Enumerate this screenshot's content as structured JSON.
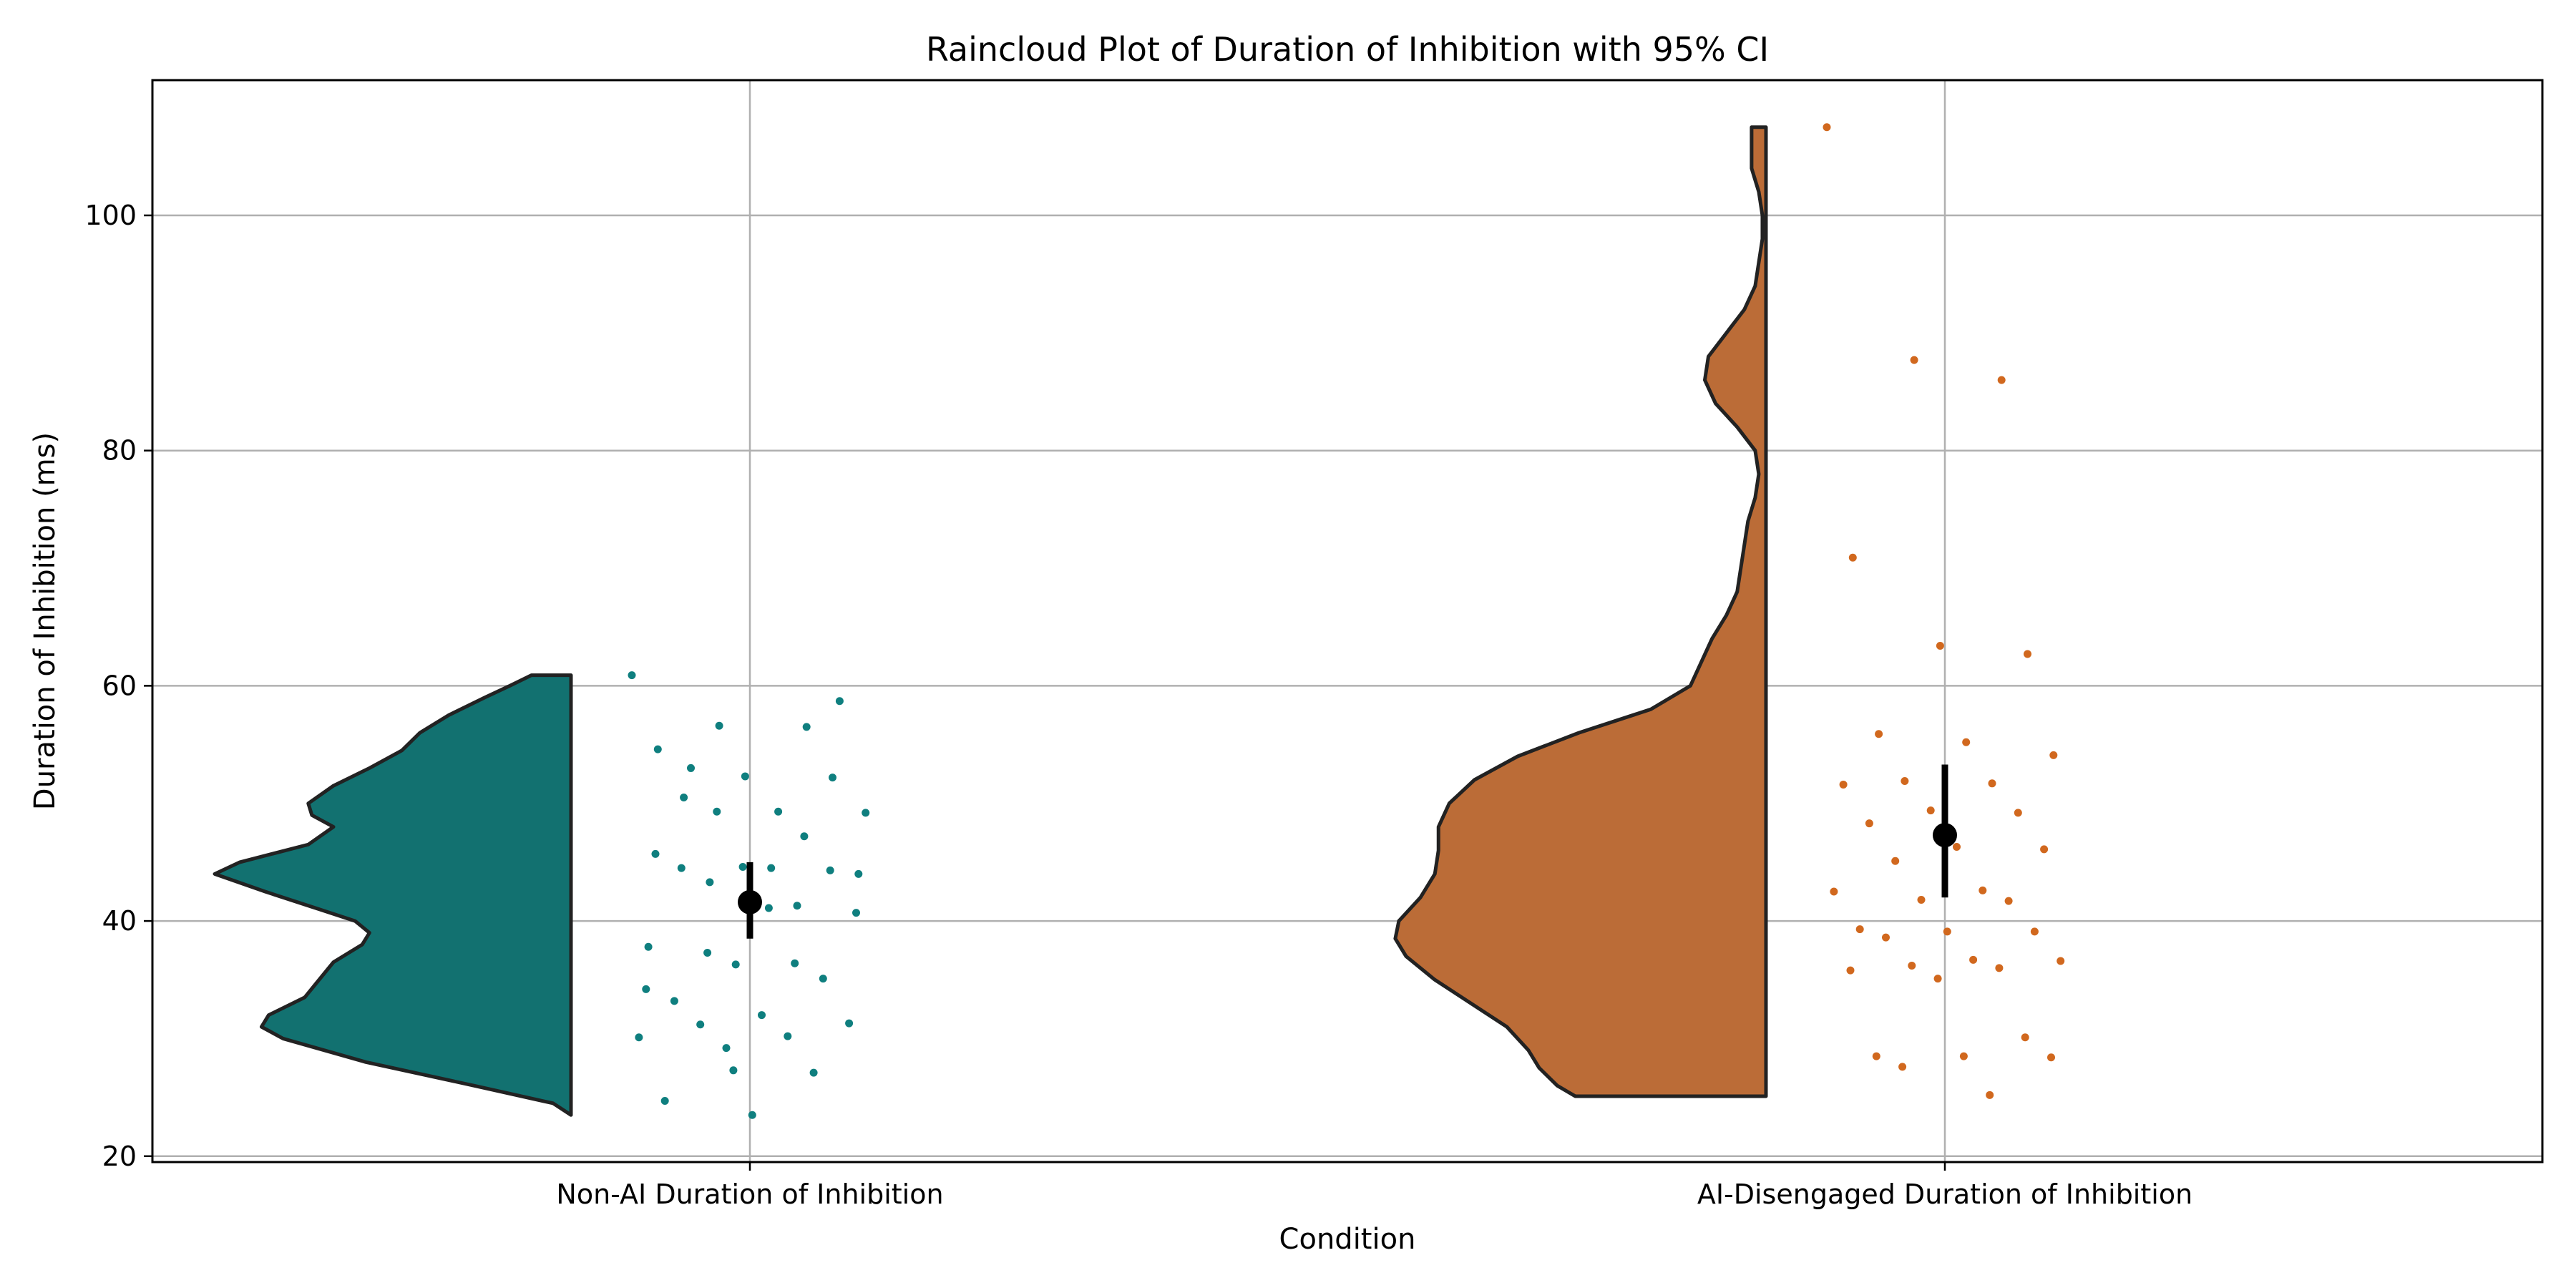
{
  "chart_data": {
    "type": "raincloud",
    "title": "Raincloud Plot of Duration of Inhibition with 95% CI",
    "xlabel": "Condition",
    "ylabel": "Duration of Inhibition (ms)",
    "ylim": [
      19.5,
      111.5
    ],
    "yticks": [
      20,
      40,
      60,
      80,
      100
    ],
    "grid": true,
    "categories": [
      "Non-AI Duration of Inhibition",
      "AI-Disengaged Duration of Inhibition"
    ],
    "series": [
      {
        "category": "Non-AI Duration of Inhibition",
        "color": "#127170",
        "point_color": "#0f7f7f",
        "mean": 41.6,
        "ci": [
          38.5,
          45.0
        ],
        "violin_range": [
          23.5,
          60.9
        ],
        "density": [
          [
            23.5,
            0.0
          ],
          [
            24.5,
            0.05
          ],
          [
            26.0,
            0.27
          ],
          [
            28.0,
            0.57
          ],
          [
            30.0,
            0.8
          ],
          [
            31.0,
            0.86
          ],
          [
            32.0,
            0.84
          ],
          [
            33.5,
            0.74
          ],
          [
            35.0,
            0.7
          ],
          [
            36.5,
            0.66
          ],
          [
            38.0,
            0.58
          ],
          [
            39.0,
            0.56
          ],
          [
            40.0,
            0.6
          ],
          [
            41.0,
            0.7
          ],
          [
            42.5,
            0.85
          ],
          [
            44.0,
            0.99
          ],
          [
            45.0,
            0.92
          ],
          [
            46.5,
            0.73
          ],
          [
            48.0,
            0.66
          ],
          [
            49.0,
            0.72
          ],
          [
            50.0,
            0.73
          ],
          [
            51.5,
            0.66
          ],
          [
            53.0,
            0.56
          ],
          [
            54.5,
            0.47
          ],
          [
            56.0,
            0.42
          ],
          [
            57.5,
            0.34
          ],
          [
            59.0,
            0.24
          ],
          [
            60.0,
            0.17
          ],
          [
            60.9,
            0.11
          ]
        ],
        "points": [
          [
            0,
            60.9
          ],
          [
            0,
            56.6
          ],
          [
            0,
            56.5
          ],
          [
            0,
            54.6
          ],
          [
            0,
            52.3
          ],
          [
            0,
            52.2
          ],
          [
            0,
            50.5
          ],
          [
            0,
            44.5
          ],
          [
            0,
            44.0
          ],
          [
            0,
            43.3
          ],
          [
            0,
            41.3
          ],
          [
            0,
            37.8
          ],
          [
            0,
            36.3
          ],
          [
            0,
            35.1
          ],
          [
            0,
            33.2
          ],
          [
            0,
            32.0
          ],
          [
            0,
            31.3
          ],
          [
            0,
            31.2
          ],
          [
            0,
            30.2
          ],
          [
            0,
            30.1
          ],
          [
            0,
            29.2
          ],
          [
            0,
            27.1
          ],
          [
            0,
            24.7
          ],
          [
            0,
            23.5
          ],
          [
            0,
            58.7
          ],
          [
            0,
            53.0
          ],
          [
            0,
            49.3
          ],
          [
            0,
            49.2
          ],
          [
            0,
            49.3
          ],
          [
            0,
            47.2
          ],
          [
            0,
            45.7
          ],
          [
            0,
            44.6
          ],
          [
            0,
            44.3
          ],
          [
            0,
            44.5
          ],
          [
            0,
            41.1
          ],
          [
            0,
            40.7
          ],
          [
            0,
            37.3
          ],
          [
            0,
            36.4
          ],
          [
            0,
            34.2
          ],
          [
            0,
            27.3
          ]
        ]
      },
      {
        "category": "AI-Disengaged Duration of Inhibition",
        "color": "#bb6c37",
        "point_color": "#d1681e",
        "mean": 47.3,
        "ci": [
          42.0,
          53.3
        ],
        "violin_range": [
          25.1,
          107.5
        ],
        "density": [
          [
            25.1,
            0.53
          ],
          [
            26.0,
            0.58
          ],
          [
            27.5,
            0.63
          ],
          [
            29.0,
            0.66
          ],
          [
            31.0,
            0.72
          ],
          [
            33.0,
            0.82
          ],
          [
            35.0,
            0.92
          ],
          [
            37.0,
            1.0
          ],
          [
            38.5,
            1.03
          ],
          [
            40.0,
            1.02
          ],
          [
            42.0,
            0.96
          ],
          [
            44.0,
            0.92
          ],
          [
            46.0,
            0.91
          ],
          [
            48.0,
            0.91
          ],
          [
            50.0,
            0.88
          ],
          [
            52.0,
            0.81
          ],
          [
            54.0,
            0.69
          ],
          [
            56.0,
            0.52
          ],
          [
            58.0,
            0.32
          ],
          [
            60.0,
            0.21
          ],
          [
            62.0,
            0.18
          ],
          [
            64.0,
            0.15
          ],
          [
            66.0,
            0.11
          ],
          [
            68.0,
            0.08
          ],
          [
            70.0,
            0.07
          ],
          [
            72.0,
            0.06
          ],
          [
            74.0,
            0.05
          ],
          [
            76.0,
            0.03
          ],
          [
            78.0,
            0.02
          ],
          [
            80.0,
            0.03
          ],
          [
            82.0,
            0.08
          ],
          [
            84.0,
            0.14
          ],
          [
            86.0,
            0.17
          ],
          [
            88.0,
            0.16
          ],
          [
            90.0,
            0.11
          ],
          [
            92.0,
            0.06
          ],
          [
            94.0,
            0.03
          ],
          [
            96.0,
            0.02
          ],
          [
            98.0,
            0.01
          ],
          [
            100.0,
            0.01
          ],
          [
            102.0,
            0.02
          ],
          [
            104.0,
            0.04
          ],
          [
            106.0,
            0.04
          ],
          [
            107.5,
            0.04
          ]
        ],
        "points": [
          [
            1,
            107.5
          ],
          [
            1,
            87.7
          ],
          [
            1,
            86.0
          ],
          [
            1,
            70.9
          ],
          [
            1,
            63.4
          ],
          [
            1,
            62.7
          ],
          [
            1,
            55.9
          ],
          [
            1,
            55.2
          ],
          [
            1,
            54.1
          ],
          [
            1,
            51.9
          ],
          [
            1,
            51.7
          ],
          [
            1,
            51.6
          ],
          [
            1,
            49.4
          ],
          [
            1,
            49.2
          ],
          [
            1,
            48.3
          ],
          [
            1,
            46.3
          ],
          [
            1,
            46.1
          ],
          [
            1,
            45.1
          ],
          [
            1,
            42.6
          ],
          [
            1,
            42.5
          ],
          [
            1,
            41.8
          ],
          [
            1,
            41.7
          ],
          [
            1,
            39.3
          ],
          [
            1,
            39.1
          ],
          [
            1,
            39.1
          ],
          [
            1,
            38.6
          ],
          [
            1,
            36.7
          ],
          [
            1,
            36.6
          ],
          [
            1,
            36.2
          ],
          [
            1,
            36.0
          ],
          [
            1,
            35.8
          ],
          [
            1,
            35.1
          ],
          [
            1,
            30.1
          ],
          [
            1,
            28.5
          ],
          [
            1,
            28.5
          ],
          [
            1,
            28.4
          ],
          [
            1,
            27.6
          ],
          [
            1,
            25.2
          ]
        ]
      }
    ]
  }
}
